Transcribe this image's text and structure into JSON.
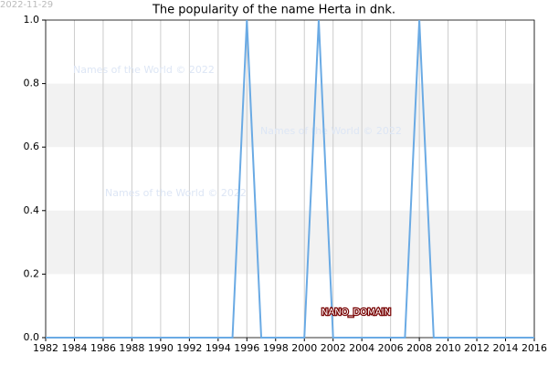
{
  "chart_data": {
    "type": "line",
    "title": "The popularity of the name Herta in dnk.",
    "date": "2022-11-29",
    "watermarks": [
      "Names of the World © 2022",
      "Names of the World © 2022",
      "Names of the World © 2022"
    ],
    "annotation": "NANO_DOMAIN",
    "x": [
      1982,
      1983,
      1984,
      1985,
      1986,
      1987,
      1988,
      1989,
      1990,
      1991,
      1992,
      1993,
      1994,
      1995,
      1996,
      1997,
      1998,
      1999,
      2000,
      2001,
      2002,
      2003,
      2004,
      2005,
      2006,
      2007,
      2008,
      2009,
      2010,
      2011,
      2012,
      2013,
      2014,
      2015,
      2016
    ],
    "series": [
      {
        "color": "#6aaae4",
        "values": [
          0,
          0,
          0,
          0,
          0,
          0,
          0,
          0,
          0,
          0,
          0,
          0,
          0,
          0,
          1,
          0,
          0,
          0,
          0,
          1,
          0,
          0,
          0,
          0,
          0,
          0,
          1,
          0,
          0,
          0,
          0,
          0,
          0,
          0,
          0
        ]
      }
    ],
    "xlim": [
      1982,
      2016
    ],
    "xticks": [
      1982,
      1984,
      1986,
      1988,
      1990,
      1992,
      1994,
      1996,
      1998,
      2000,
      2002,
      2004,
      2006,
      2008,
      2010,
      2012,
      2014,
      2016
    ],
    "ylim": [
      0,
      1
    ],
    "yticks": [
      {
        "value": 0,
        "label": "0.0"
      },
      {
        "value": 0.2,
        "label": "0.2"
      },
      {
        "value": 0.4,
        "label": "0.4"
      },
      {
        "value": 0.6,
        "label": "0.6"
      },
      {
        "value": 0.8,
        "label": "0.8"
      },
      {
        "value": 1,
        "label": "1.0"
      }
    ],
    "grid": true,
    "bands": true
  }
}
